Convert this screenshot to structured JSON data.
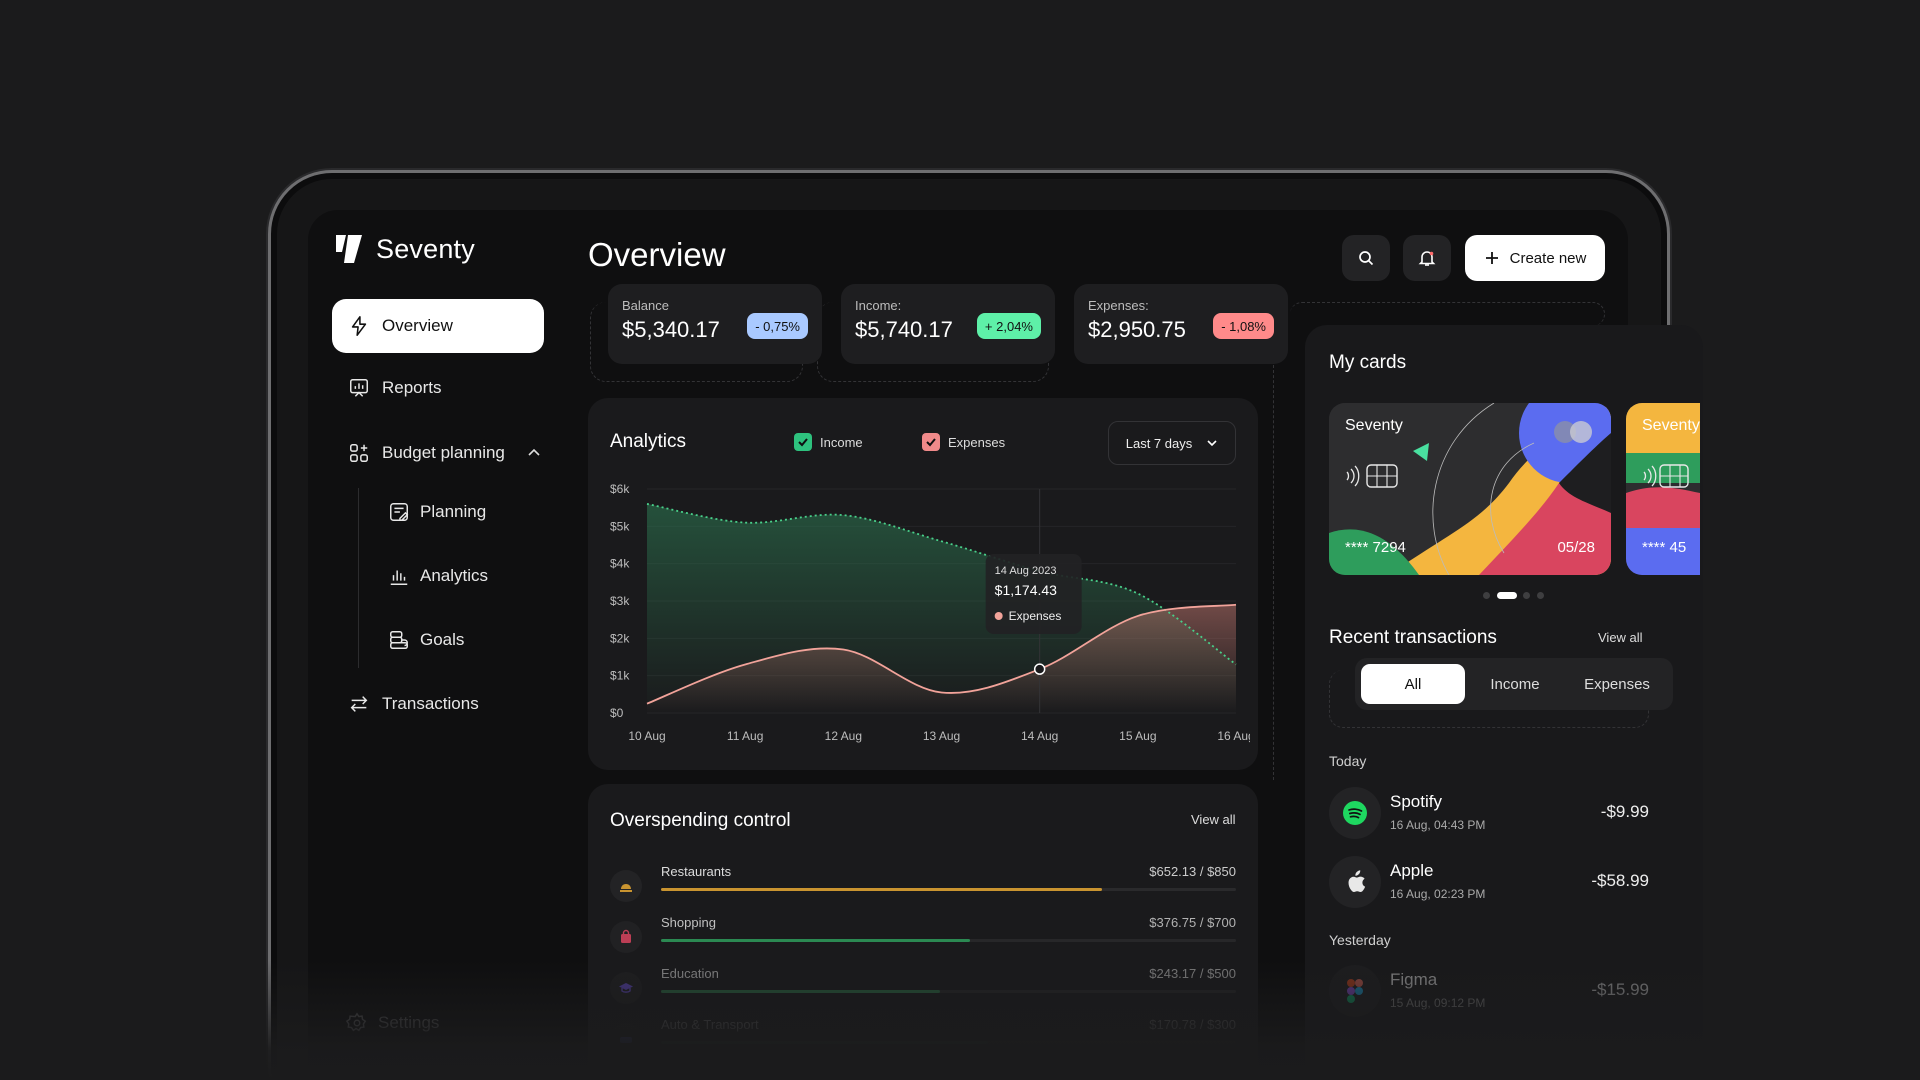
{
  "app": {
    "name": "Seventy"
  },
  "sidebar": {
    "items": [
      {
        "label": "Overview"
      },
      {
        "label": "Reports"
      },
      {
        "label": "Budget planning"
      },
      {
        "label": "Transactions"
      }
    ],
    "sub_items": [
      {
        "label": "Planning"
      },
      {
        "label": "Analytics"
      },
      {
        "label": "Goals"
      }
    ],
    "settings_label": "Settings"
  },
  "header": {
    "title": "Overview",
    "create_label": "Create new"
  },
  "stats": [
    {
      "label": "Balance",
      "value": "$5,340.17",
      "change": "- 0,75%",
      "color": "#a9c9ff"
    },
    {
      "label": "Income:",
      "value": "$5,740.17",
      "change": "+ 2,04%",
      "color": "#5ef0a8"
    },
    {
      "label": "Expenses:",
      "value": "$2,950.75",
      "change": "- 1,08%",
      "color": "#ff8a8a"
    }
  ],
  "analytics": {
    "title": "Analytics",
    "legend": [
      {
        "label": "Income",
        "color": "#2ec27e"
      },
      {
        "label": "Expenses",
        "color": "#f08a8a"
      }
    ],
    "range": "Last 7 days",
    "tooltip": {
      "date": "14 Aug 2023",
      "value": "$1,174.43",
      "series": "Expenses"
    }
  },
  "chart_data": {
    "type": "area",
    "x": [
      "10 Aug",
      "11 Aug",
      "12 Aug",
      "13 Aug",
      "14 Aug",
      "15 Aug",
      "16 Aug"
    ],
    "y_ticks": [
      "$6k",
      "$5k",
      "$4k",
      "$3k",
      "$2k",
      "$1k",
      "$0"
    ],
    "ylim": [
      0,
      6000
    ],
    "series": [
      {
        "name": "Income",
        "values": [
          5600,
          5100,
          5300,
          4600,
          3800,
          3200,
          1300
        ]
      },
      {
        "name": "Expenses",
        "values": [
          250,
          1300,
          1700,
          550,
          1174.43,
          2600,
          2900
        ]
      }
    ]
  },
  "overspending": {
    "title": "Overspending control",
    "view_all": "View all",
    "items": [
      {
        "name": "Restaurants",
        "amount": "$652.13 / $850",
        "progress": 0.767,
        "color": "#c99430"
      },
      {
        "name": "Shopping",
        "amount": "$376.75 / $700",
        "progress": 0.538,
        "color": "#2e9d5c"
      },
      {
        "name": "Education",
        "amount": "$243.17 / $500",
        "progress": 0.486,
        "color": "#2e7d4e"
      },
      {
        "name": "Auto & Transport",
        "amount": "$170.78 / $300",
        "progress": 0.569,
        "color": "#2a5a3d"
      }
    ]
  },
  "cards": {
    "title": "My cards",
    "items": [
      {
        "brand": "Seventy",
        "number": "**** 7294",
        "expiry": "05/28"
      },
      {
        "brand": "Seventy",
        "number": "**** 45"
      }
    ]
  },
  "transactions": {
    "title": "Recent transactions",
    "view_all": "View all",
    "tabs": [
      "All",
      "Income",
      "Expenses"
    ],
    "groups": [
      {
        "label": "Today"
      },
      {
        "label": "Yesterday"
      }
    ],
    "items": [
      {
        "name": "Spotify",
        "date": "16 Aug, 04:43 PM",
        "amount": "-$9.99",
        "icon": "spotify-icon"
      },
      {
        "name": "Apple",
        "date": "16 Aug, 02:23 PM",
        "amount": "-$58.99",
        "icon": "apple-icon"
      },
      {
        "name": "Figma",
        "date": "15 Aug, 09:12 PM",
        "amount": "-$15.99",
        "icon": "figma-icon"
      }
    ]
  }
}
